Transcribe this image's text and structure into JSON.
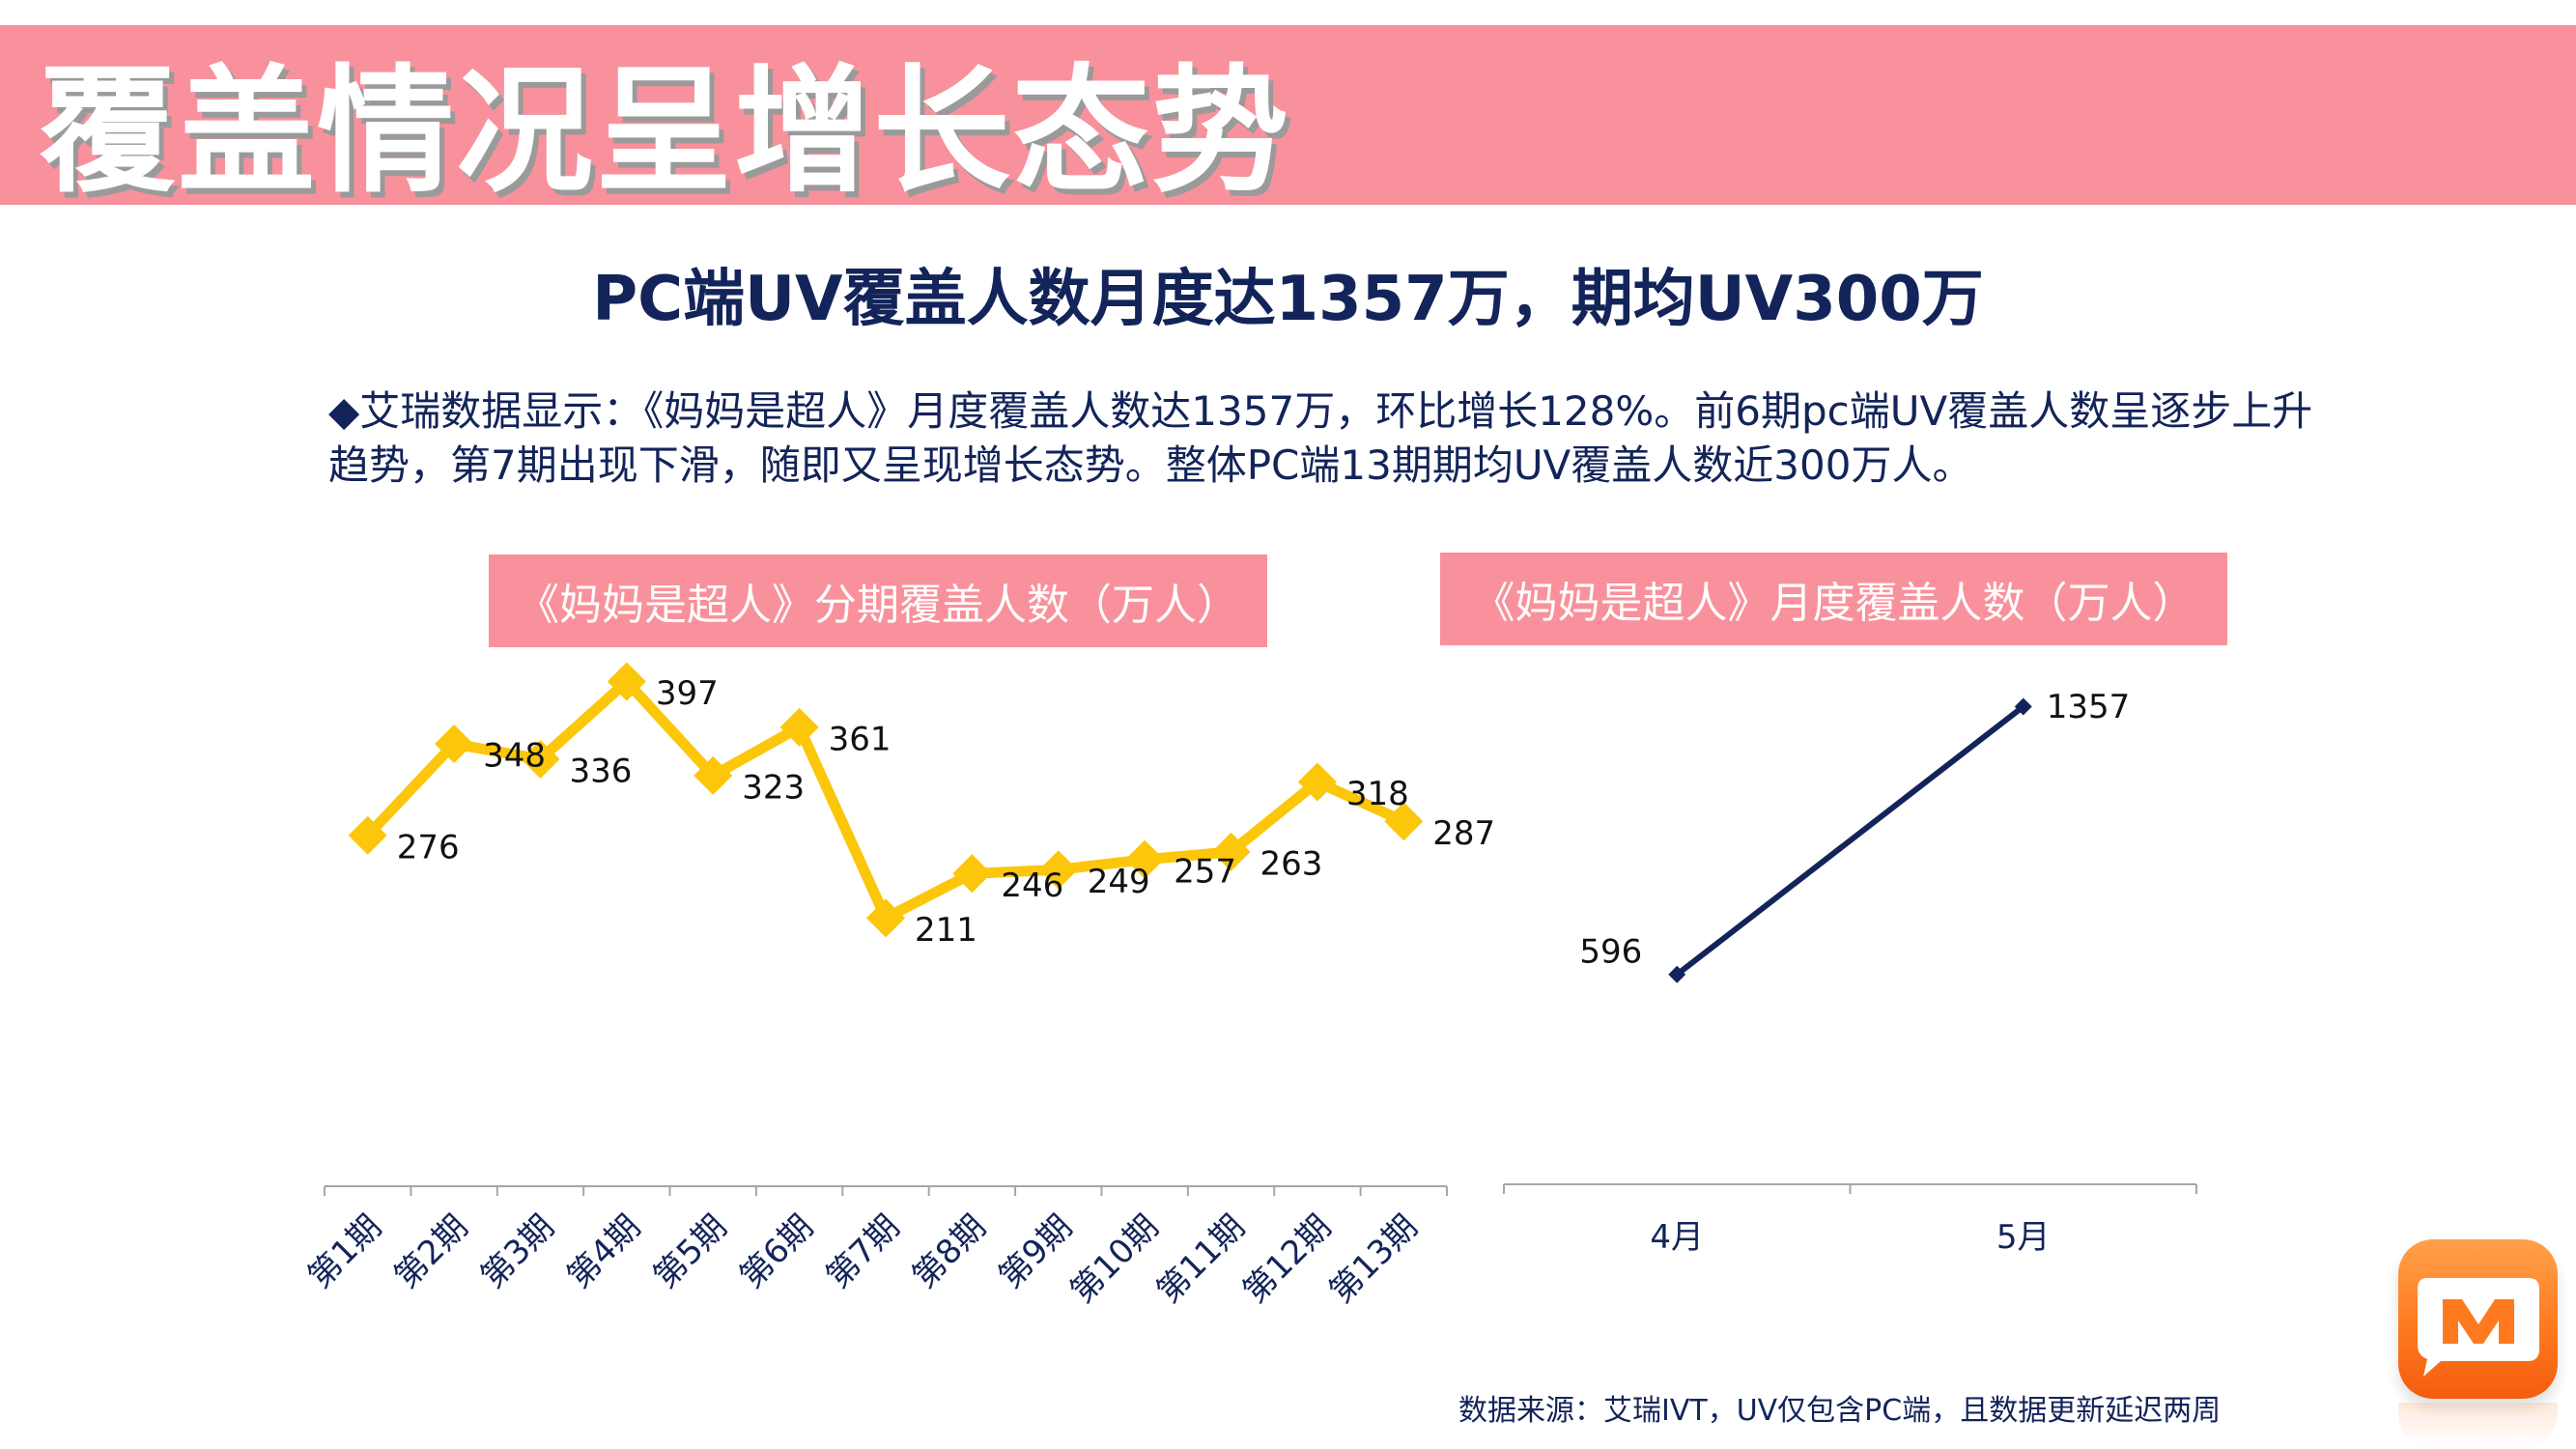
{
  "header": {
    "title": "覆盖情况呈增长态势"
  },
  "headline": "PC端UV覆盖人数月度达1357万，期均UV300万",
  "description": "◆艾瑞数据显示：《妈妈是超人》月度覆盖人数达1357万，环比增长128%。前6期pc端UV覆盖人数呈逐步上升趋势，第7期出现下滑，随即又呈现增长态势。整体PC端13期期均UV覆盖人数近300万人。",
  "chart_data": [
    {
      "type": "line",
      "title": "《妈妈是超人》分期覆盖人数（万人）",
      "categories": [
        "第1期",
        "第2期",
        "第3期",
        "第4期",
        "第5期",
        "第6期",
        "第7期",
        "第8期",
        "第9期",
        "第10期",
        "第11期",
        "第12期",
        "第13期"
      ],
      "values": [
        276,
        348,
        336,
        397,
        323,
        361,
        211,
        246,
        249,
        257,
        263,
        318,
        287
      ],
      "ylim": [
        0,
        500
      ],
      "grid": false,
      "legend": "none",
      "color": "#fcc60a",
      "marker": "diamond"
    },
    {
      "type": "line",
      "title": "《妈妈是超人》月度覆盖人数（万人）",
      "categories": [
        "4月",
        "5月"
      ],
      "values": [
        596,
        1357
      ],
      "ylim": [
        0,
        1800
      ],
      "grid": false,
      "legend": "none",
      "color": "#13245a",
      "marker": "diamond"
    }
  ],
  "source": "数据来源：艾瑞IVT，UV仅包含PC端，且数据更新延迟两周",
  "logo": {
    "icon": "mango-tv-logo-icon",
    "colors": [
      "#ffa14a",
      "#f25c0f"
    ]
  }
}
